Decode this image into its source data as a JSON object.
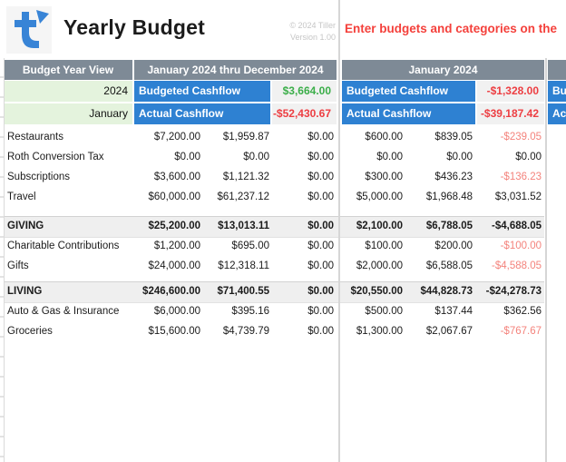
{
  "header": {
    "title": "Yearly Budget",
    "copyright_line1": "© 2024 Tiller",
    "copyright_line2": "Version 1.00",
    "note": "Enter budgets and categories on the"
  },
  "columns": {
    "year_view": "Budget Year View",
    "ytd": "January 2024 thru December 2024",
    "month": "January 2024"
  },
  "summary": {
    "year": "2024",
    "month": "January",
    "budgeted_label": "Budgeted Cashflow",
    "actual_label": "Actual Cashflow",
    "ytd": {
      "budgeted": "$3,664.00",
      "actual": "-$52,430.67"
    },
    "january": {
      "budgeted": "-$1,328.00",
      "actual": "-$39,187.42"
    }
  },
  "rows": [
    {
      "type": "data",
      "name": "Restaurants",
      "ytd": [
        "$7,200.00",
        "$1,959.87",
        "$0.00"
      ],
      "jan": [
        "$600.00",
        "$839.05",
        "-$239.05"
      ]
    },
    {
      "type": "data",
      "name": "Roth Conversion Tax",
      "ytd": [
        "$0.00",
        "$0.00",
        "$0.00"
      ],
      "jan": [
        "$0.00",
        "$0.00",
        "$0.00"
      ]
    },
    {
      "type": "data",
      "name": "Subscriptions",
      "ytd": [
        "$3,600.00",
        "$1,121.32",
        "$0.00"
      ],
      "jan": [
        "$300.00",
        "$436.23",
        "-$136.23"
      ]
    },
    {
      "type": "data",
      "name": "Travel",
      "ytd": [
        "$60,000.00",
        "$61,237.12",
        "$0.00"
      ],
      "jan": [
        "$5,000.00",
        "$1,968.48",
        "$3,031.52"
      ]
    },
    {
      "type": "spacer",
      "h": 10
    },
    {
      "type": "section",
      "name": "GIVING",
      "ytd": [
        "$25,200.00",
        "$13,013.11",
        "$0.00"
      ],
      "jan": [
        "$2,100.00",
        "$6,788.05",
        "-$4,688.05"
      ]
    },
    {
      "type": "data",
      "name": "Charitable Contributions",
      "ytd": [
        "$1,200.00",
        "$695.00",
        "$0.00"
      ],
      "jan": [
        "$100.00",
        "$200.00",
        "-$100.00"
      ]
    },
    {
      "type": "data",
      "name": "Gifts",
      "ytd": [
        "$24,000.00",
        "$12,318.11",
        "$0.00"
      ],
      "jan": [
        "$2,000.00",
        "$6,588.05",
        "-$4,588.05"
      ]
    },
    {
      "type": "spacer",
      "h": 6
    },
    {
      "type": "section",
      "name": "LIVING",
      "ytd": [
        "$246,600.00",
        "$71,400.55",
        "$0.00"
      ],
      "jan": [
        "$20,550.00",
        "$44,828.73",
        "-$24,278.73"
      ]
    },
    {
      "type": "data",
      "name": "Auto & Gas & Insurance",
      "ytd": [
        "$6,000.00",
        "$395.16",
        "$0.00"
      ],
      "jan": [
        "$500.00",
        "$137.44",
        "$362.56"
      ]
    },
    {
      "type": "data",
      "name": "Groceries",
      "ytd": [
        "$15,600.00",
        "$4,739.79",
        "$0.00"
      ],
      "jan": [
        "$1,300.00",
        "$2,067.67",
        "-$767.67"
      ]
    }
  ],
  "colors": {
    "header_gray": "#7E8A96",
    "accent_blue": "#2E81D2",
    "light_green": "#E4F3DD",
    "value_bg": "#F1F1F1",
    "positive_green": "#3BAE49",
    "negative_red": "#ED3E42",
    "negative_light": "#F4837C",
    "note_red": "#F4403B",
    "logo_blue": "#3884D6",
    "band_gray": "#EFEFEF"
  }
}
